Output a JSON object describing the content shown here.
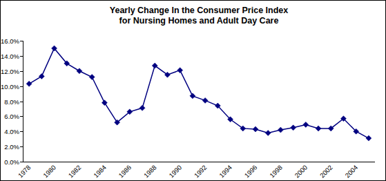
{
  "chart_data": {
    "type": "line",
    "title": "Yearly Change In the Consumer Price Index\nfor Nursing Homes and Adult Day Care",
    "categories": [
      "1978",
      null,
      "1980",
      null,
      "1982",
      null,
      "1984",
      null,
      "1986",
      null,
      "1988",
      null,
      "1990",
      null,
      "1992",
      null,
      "1994",
      null,
      "1996",
      null,
      "1998",
      null,
      "2000",
      null,
      "2002",
      null,
      "2004",
      null
    ],
    "values": [
      10.3,
      11.3,
      15.0,
      13.0,
      12.0,
      11.2,
      7.8,
      5.2,
      6.6,
      7.1,
      12.7,
      11.5,
      12.1,
      8.7,
      8.1,
      7.4,
      5.6,
      4.4,
      4.3,
      3.8,
      4.2,
      4.5,
      4.9,
      4.4,
      4.4,
      5.7,
      4.0,
      3.1
    ],
    "color": "#000080",
    "marker": "diamond",
    "line_style": "solid",
    "ylim": [
      0,
      16
    ],
    "yticks": [
      {
        "value": 0,
        "label": "0.0%"
      },
      {
        "value": 2,
        "label": "2.0%"
      },
      {
        "value": 4,
        "label": "4.0%"
      },
      {
        "value": 6,
        "label": "6.0%"
      },
      {
        "value": 8,
        "label": "8.0%"
      },
      {
        "value": 10,
        "label": "10.0%"
      },
      {
        "value": 12,
        "label": "12.0%"
      },
      {
        "value": 14,
        "label": "14.0%"
      },
      {
        "value": 16,
        "label": "16.0%"
      }
    ],
    "grid": false
  }
}
